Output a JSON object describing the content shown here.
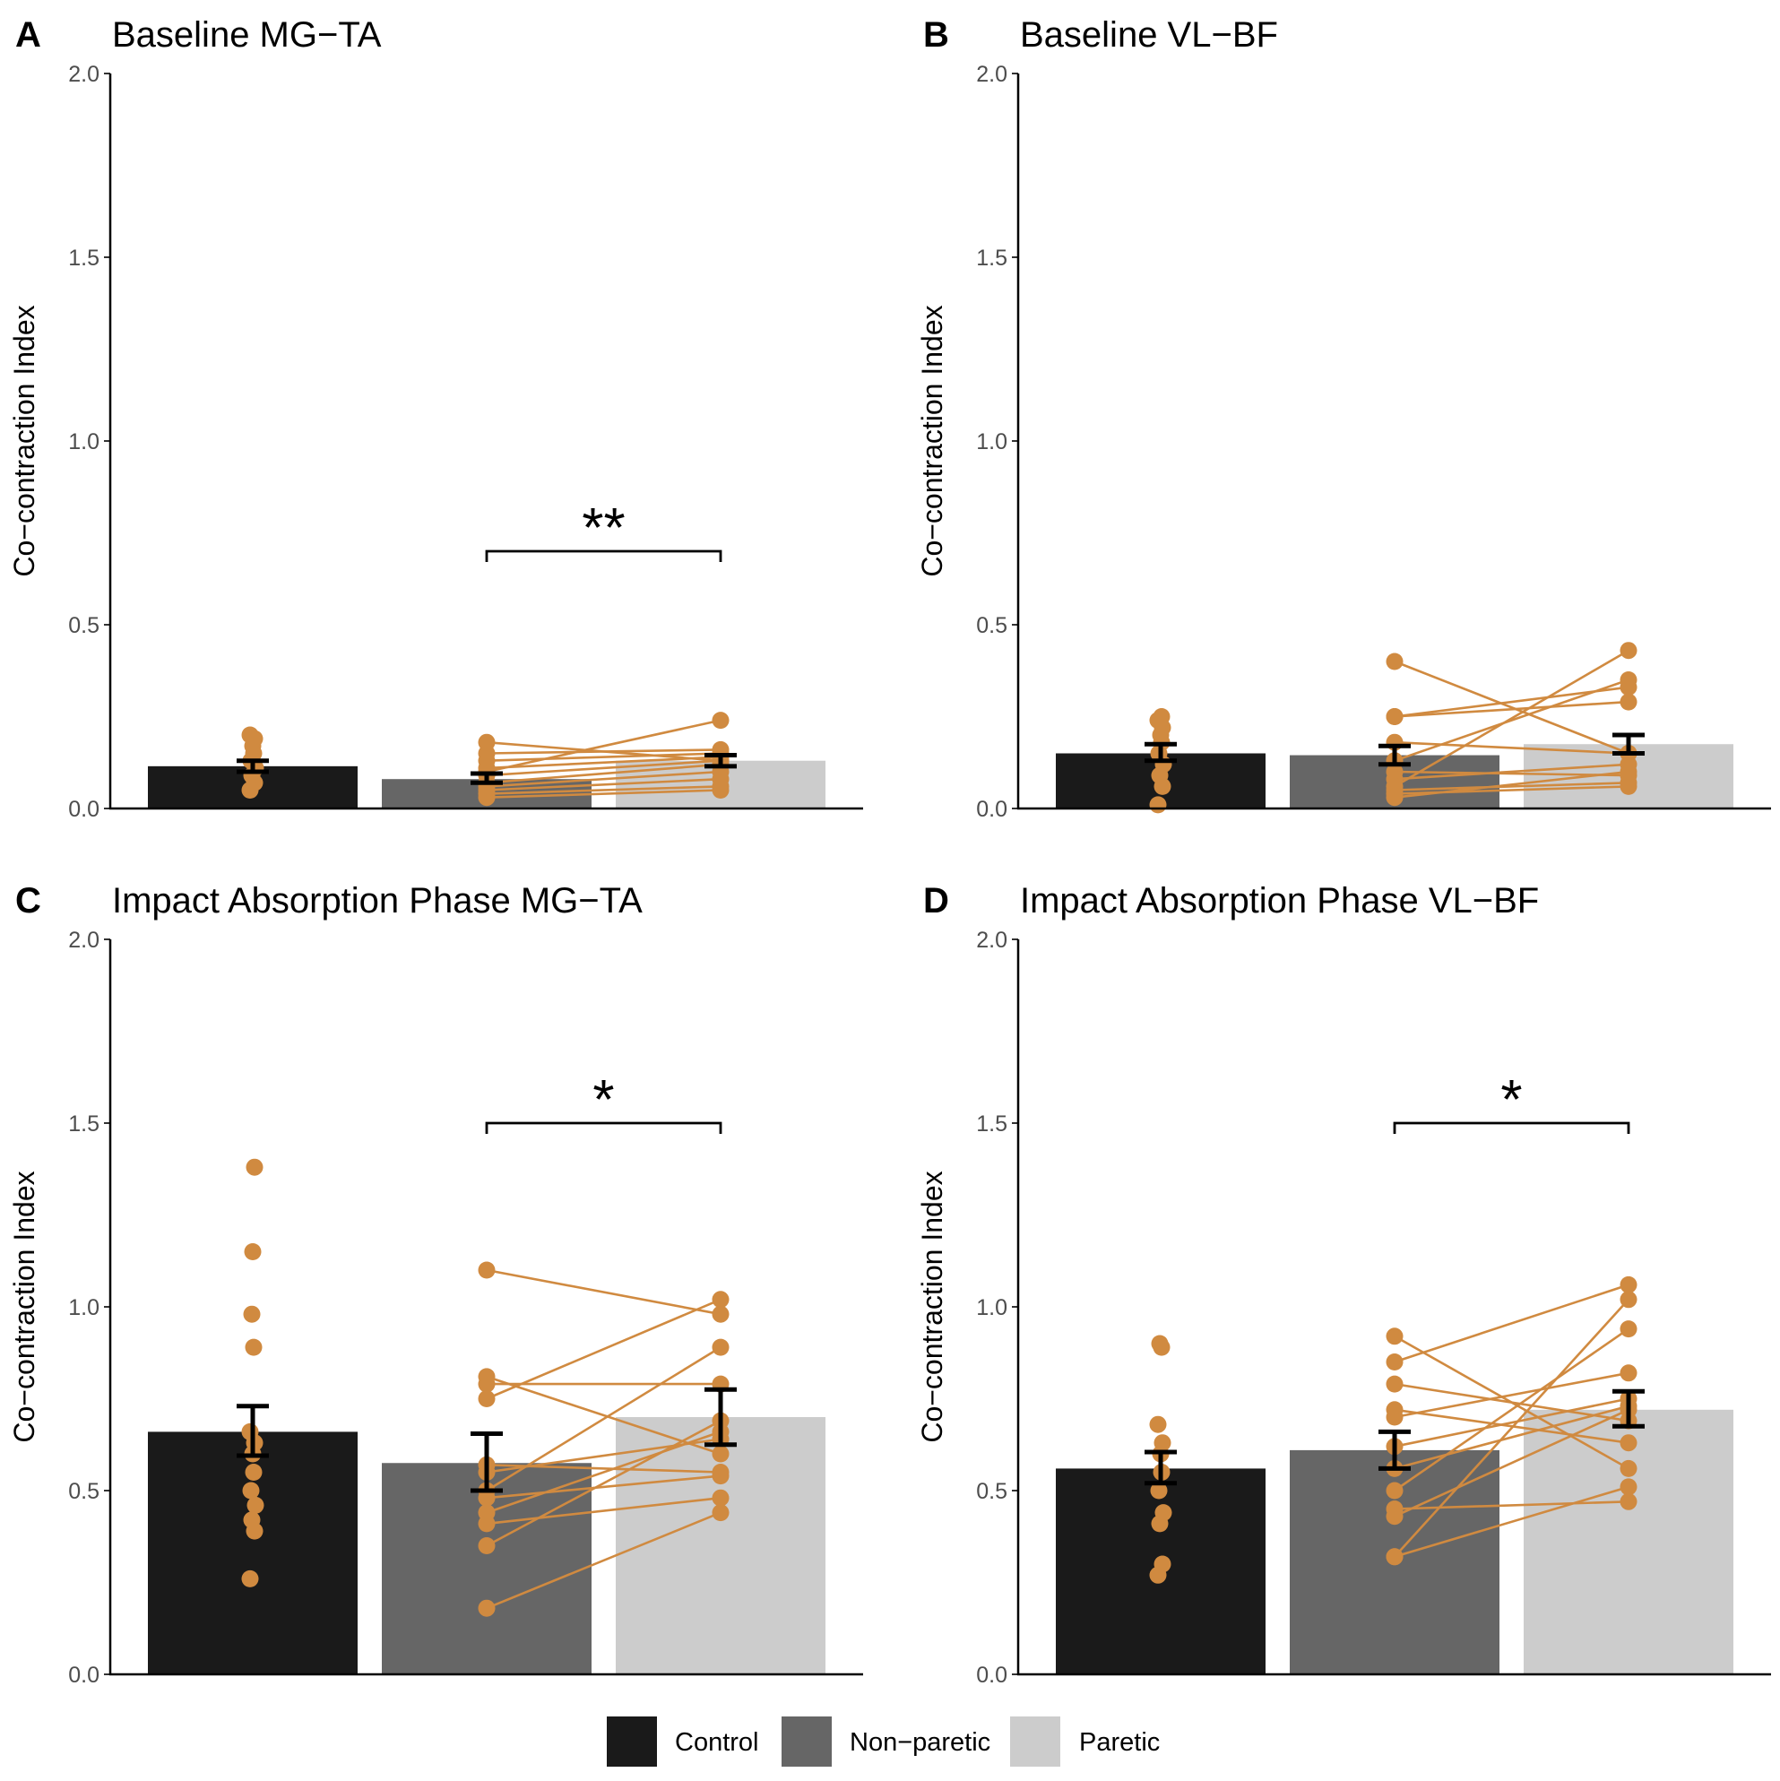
{
  "legend": {
    "items": [
      {
        "label": "Control",
        "color": "#1a1a1a"
      },
      {
        "label": "Non−paretic",
        "color": "#666666"
      },
      {
        "label": "Paretic",
        "color": "#cccccc"
      }
    ]
  },
  "colors": {
    "point": "#d08a40",
    "line": "#d08a40",
    "errorbar": "#000000",
    "axis": "#000000"
  },
  "chart_data": [
    {
      "type": "bar",
      "panel": "A",
      "title": "Baseline MG−TA",
      "xlabel": "",
      "ylabel": "Co−contraction Index",
      "ylim": [
        0,
        2
      ],
      "yticks": [
        "0.0",
        "0.5",
        "1.0",
        "1.5",
        "2.0"
      ],
      "categories": [
        "Control",
        "Non−paretic",
        "Paretic"
      ],
      "values": [
        0.115,
        0.08,
        0.13
      ],
      "errors": [
        [
          0.1,
          0.13
        ],
        [
          0.07,
          0.095
        ],
        [
          0.115,
          0.145
        ]
      ],
      "points_control": [
        0.05,
        0.07,
        0.09,
        0.11,
        0.13,
        0.15,
        0.17,
        0.19,
        0.2
      ],
      "pairs": [
        [
          0.03,
          0.05
        ],
        [
          0.04,
          0.06
        ],
        [
          0.05,
          0.08
        ],
        [
          0.06,
          0.1
        ],
        [
          0.07,
          0.12
        ],
        [
          0.09,
          0.13
        ],
        [
          0.11,
          0.14
        ],
        [
          0.13,
          0.15
        ],
        [
          0.15,
          0.16
        ],
        [
          0.18,
          0.13
        ],
        [
          0.1,
          0.24
        ]
      ],
      "significance": {
        "from": 1,
        "to": 2,
        "label": "**",
        "y": 0.7
      }
    },
    {
      "type": "bar",
      "panel": "B",
      "title": "Baseline VL−BF",
      "xlabel": "",
      "ylabel": "Co−contraction Index",
      "ylim": [
        0,
        2
      ],
      "yticks": [
        "0.0",
        "0.5",
        "1.0",
        "1.5",
        "2.0"
      ],
      "categories": [
        "Control",
        "Non−paretic",
        "Paretic"
      ],
      "values": [
        0.15,
        0.145,
        0.175
      ],
      "errors": [
        [
          0.13,
          0.175
        ],
        [
          0.12,
          0.17
        ],
        [
          0.15,
          0.2
        ]
      ],
      "points_control": [
        0.01,
        0.06,
        0.09,
        0.12,
        0.15,
        0.18,
        0.2,
        0.22,
        0.24,
        0.25
      ],
      "pairs": [
        [
          0.4,
          0.15
        ],
        [
          0.25,
          0.29
        ],
        [
          0.25,
          0.33
        ],
        [
          0.18,
          0.15
        ],
        [
          0.13,
          0.35
        ],
        [
          0.1,
          0.09
        ],
        [
          0.08,
          0.12
        ],
        [
          0.06,
          0.43
        ],
        [
          0.05,
          0.07
        ],
        [
          0.04,
          0.06
        ],
        [
          0.03,
          0.1
        ]
      ],
      "significance": null
    },
    {
      "type": "bar",
      "panel": "C",
      "title": "Impact Absorption Phase MG−TA",
      "xlabel": "",
      "ylabel": "Co−contraction Index",
      "ylim": [
        0,
        2
      ],
      "yticks": [
        "0.0",
        "0.5",
        "1.0",
        "1.5",
        "2.0"
      ],
      "categories": [
        "Control",
        "Non−paretic",
        "Paretic"
      ],
      "values": [
        0.66,
        0.575,
        0.7
      ],
      "errors": [
        [
          0.595,
          0.73
        ],
        [
          0.5,
          0.655
        ],
        [
          0.625,
          0.775
        ]
      ],
      "points_control": [
        0.26,
        0.39,
        0.42,
        0.46,
        0.5,
        0.55,
        0.6,
        0.63,
        0.66,
        0.89,
        0.98,
        1.15,
        1.38
      ],
      "pairs": [
        [
          1.1,
          0.98
        ],
        [
          0.81,
          0.6
        ],
        [
          0.79,
          0.79
        ],
        [
          0.75,
          1.02
        ],
        [
          0.57,
          0.55
        ],
        [
          0.55,
          0.64
        ],
        [
          0.5,
          0.89
        ],
        [
          0.48,
          0.54
        ],
        [
          0.44,
          0.66
        ],
        [
          0.41,
          0.48
        ],
        [
          0.35,
          0.69
        ],
        [
          0.18,
          0.44
        ]
      ],
      "significance": {
        "from": 1,
        "to": 2,
        "label": "*",
        "y": 1.5
      }
    },
    {
      "type": "bar",
      "panel": "D",
      "title": "Impact Absorption Phase VL−BF",
      "xlabel": "",
      "ylabel": "Co−contraction Index",
      "ylim": [
        0,
        2
      ],
      "yticks": [
        "0.0",
        "0.5",
        "1.0",
        "1.5",
        "2.0"
      ],
      "categories": [
        "Control",
        "Non−paretic",
        "Paretic"
      ],
      "values": [
        0.56,
        0.61,
        0.72
      ],
      "errors": [
        [
          0.52,
          0.605
        ],
        [
          0.56,
          0.66
        ],
        [
          0.675,
          0.77
        ]
      ],
      "points_control": [
        0.27,
        0.3,
        0.41,
        0.44,
        0.5,
        0.55,
        0.6,
        0.63,
        0.68,
        0.89,
        0.9
      ],
      "pairs": [
        [
          0.92,
          0.56
        ],
        [
          0.85,
          1.06
        ],
        [
          0.79,
          0.69
        ],
        [
          0.72,
          0.63
        ],
        [
          0.7,
          0.82
        ],
        [
          0.62,
          0.75
        ],
        [
          0.56,
          0.73
        ],
        [
          0.5,
          0.94
        ],
        [
          0.45,
          0.47
        ],
        [
          0.43,
          0.72
        ],
        [
          0.32,
          1.02
        ],
        [
          0.32,
          0.51
        ]
      ],
      "significance": {
        "from": 1,
        "to": 2,
        "label": "*",
        "y": 1.5
      }
    }
  ]
}
